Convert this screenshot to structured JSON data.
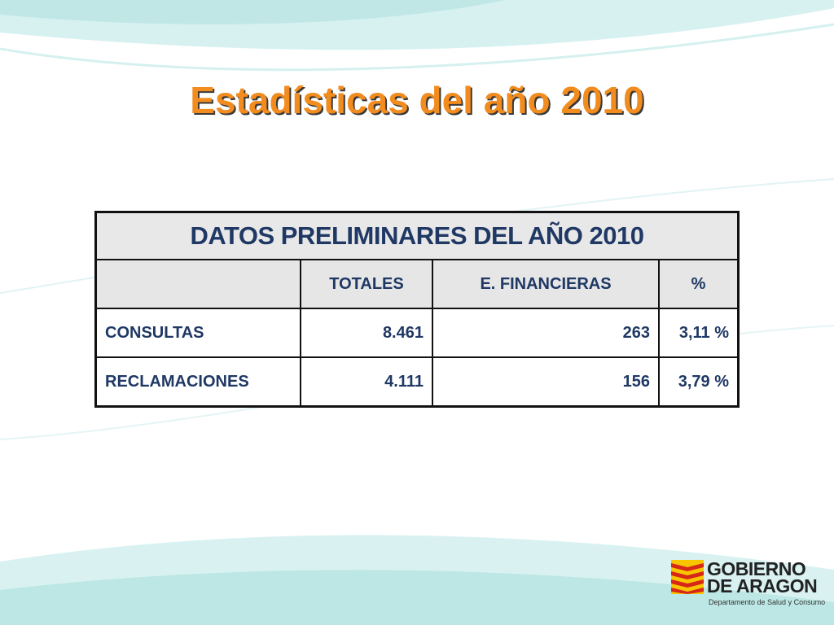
{
  "slide": {
    "title": "Estadísticas del año 2010"
  },
  "table": {
    "heading": "DATOS PRELIMINARES DEL AÑO 2010",
    "columns": [
      "",
      "TOTALES",
      "E. FINANCIERAS",
      "%"
    ],
    "rows": [
      {
        "label": "CONSULTAS",
        "totales": "8.461",
        "financieras": "263",
        "pct": "3,11 %"
      },
      {
        "label": "RECLAMACIONES",
        "totales": "4.111",
        "financieras": "156",
        "pct": "3,79 %"
      }
    ]
  },
  "logo": {
    "line1": "GOBIERNO",
    "line2": "DE ARAGON",
    "subtitle": "Departamento de Salud y Consumo"
  },
  "colors": {
    "title": "#f28c1e",
    "table_text": "#1f3864",
    "header_bg": "#e6e6e6",
    "wave": "#bfe6e6"
  }
}
